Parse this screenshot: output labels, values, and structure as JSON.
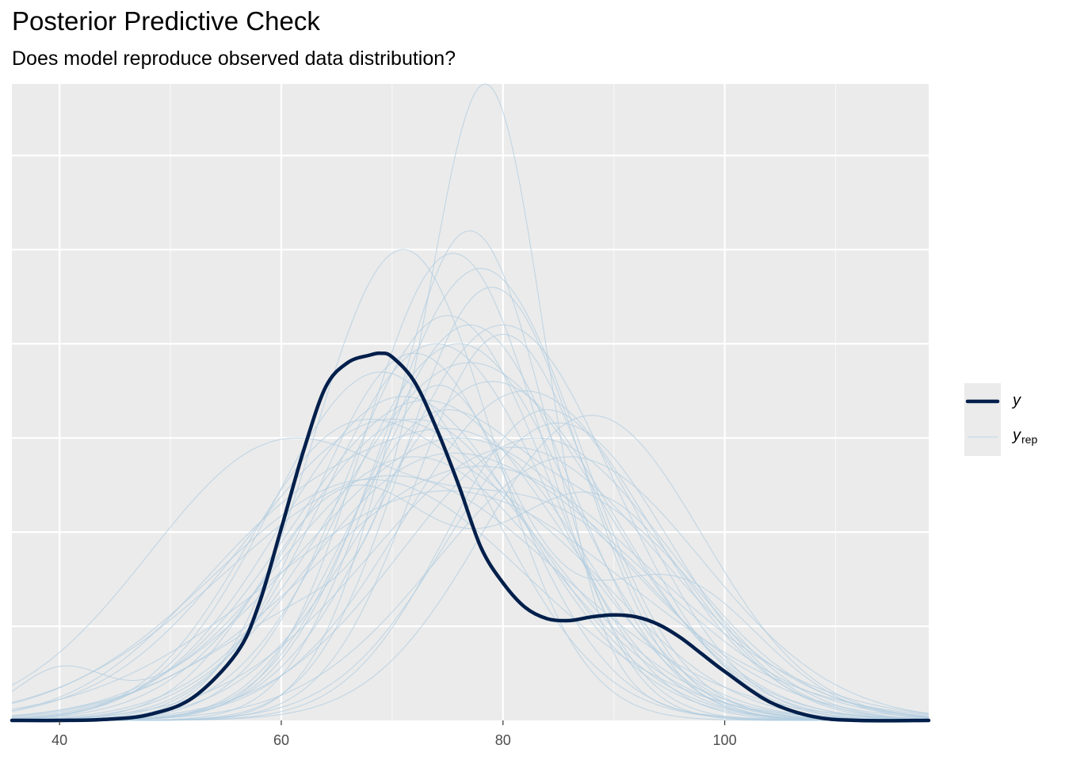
{
  "chart_data": {
    "type": "line",
    "title": "Posterior Predictive Check",
    "subtitle": "Does model reproduce observed data distribution?",
    "xlabel": "",
    "ylabel": "",
    "xlim": [
      35.7,
      118.4
    ],
    "ylim": [
      0,
      0.0338
    ],
    "x_ticks": [
      40,
      60,
      80,
      100
    ],
    "x_tick_labels": [
      "40",
      "60",
      "80",
      "100"
    ],
    "y_gridlines": [
      0.005,
      0.01,
      0.015,
      0.02,
      0.025,
      0.03
    ],
    "y_tick_labels_shown": false,
    "grid": true,
    "legend": {
      "position": "right",
      "entries": [
        {
          "label": "y",
          "subscript": "",
          "color": "#011f4b"
        },
        {
          "label": "y",
          "subscript": "rep",
          "color": "#b3cde0"
        }
      ]
    },
    "series_observed": {
      "name": "y",
      "color": "#011f4b",
      "x": [
        35.7,
        40,
        44,
        48,
        52,
        56,
        58,
        60,
        62,
        64,
        66,
        68,
        69,
        70,
        72,
        74,
        76,
        78,
        80,
        82,
        84,
        86,
        88,
        90,
        92,
        94,
        96,
        98,
        100,
        104,
        108,
        112,
        118.4
      ],
      "y": [
        0.0,
        0.0,
        5e-05,
        0.0003,
        0.0012,
        0.0036,
        0.0062,
        0.0102,
        0.0143,
        0.0177,
        0.019,
        0.0194,
        0.0195,
        0.0193,
        0.018,
        0.0155,
        0.0125,
        0.0092,
        0.0073,
        0.006,
        0.0054,
        0.0053,
        0.0055,
        0.0056,
        0.0055,
        0.0051,
        0.0044,
        0.0035,
        0.0026,
        0.001,
        0.0002,
        0.0,
        0.0
      ]
    },
    "replicates": [
      {
        "c": [
          [
            70,
            10,
            0.5
          ],
          [
            85,
            12,
            0.5
          ]
        ],
        "peak": 0.0142
      },
      {
        "c": [
          [
            72,
            11,
            1
          ]
        ],
        "peak": 0.016
      },
      {
        "c": [
          [
            78.7,
            5,
            0.8
          ],
          [
            68,
            12,
            0.2
          ]
        ],
        "peak": 0.0338
      },
      {
        "c": [
          [
            77,
            7,
            1
          ]
        ],
        "peak": 0.026
      },
      {
        "c": [
          [
            75.5,
            8,
            1
          ]
        ],
        "peak": 0.0248
      },
      {
        "c": [
          [
            71,
            8,
            1
          ]
        ],
        "peak": 0.025
      },
      {
        "c": [
          [
            78,
            9,
            1
          ]
        ],
        "peak": 0.024
      },
      {
        "c": [
          [
            80,
            10,
            1
          ]
        ],
        "peak": 0.021
      },
      {
        "c": [
          [
            74,
            10,
            1
          ]
        ],
        "peak": 0.02
      },
      {
        "c": [
          [
            65,
            9,
            0.6
          ],
          [
            82,
            10,
            0.4
          ]
        ],
        "peak": 0.016
      },
      {
        "c": [
          [
            88,
            10,
            1
          ]
        ],
        "peak": 0.0162
      },
      {
        "c": [
          [
            60,
            12,
            0.6
          ],
          [
            85,
            10,
            0.4
          ]
        ],
        "peak": 0.015
      },
      {
        "c": [
          [
            76,
            14,
            1
          ]
        ],
        "peak": 0.015
      },
      {
        "c": [
          [
            73,
            12,
            1
          ]
        ],
        "peak": 0.017
      },
      {
        "c": [
          [
            82,
            11,
            1
          ]
        ],
        "peak": 0.0175
      },
      {
        "c": [
          [
            40,
            4,
            0.15
          ],
          [
            72,
            12,
            0.85
          ]
        ],
        "peak": 0.014
      },
      {
        "c": [
          [
            79,
            8,
            1
          ]
        ],
        "peak": 0.023
      },
      {
        "c": [
          [
            69,
            10,
            1
          ]
        ],
        "peak": 0.0185
      },
      {
        "c": [
          [
            84,
            9,
            1
          ]
        ],
        "peak": 0.0165
      },
      {
        "c": [
          [
            70,
            15,
            1
          ]
        ],
        "peak": 0.013
      },
      {
        "c": [
          [
            77,
            12,
            1
          ]
        ],
        "peak": 0.019
      },
      {
        "c": [
          [
            66,
            8,
            0.5
          ],
          [
            88,
            9,
            0.5
          ]
        ],
        "peak": 0.0125
      },
      {
        "c": [
          [
            75,
            9,
            1
          ]
        ],
        "peak": 0.0215
      },
      {
        "c": [
          [
            81,
            13,
            1
          ]
        ],
        "peak": 0.0145
      },
      {
        "c": [
          [
            72,
            9,
            1
          ]
        ],
        "peak": 0.0195
      },
      {
        "c": [
          [
            86,
            12,
            1
          ]
        ],
        "peak": 0.014
      },
      {
        "c": [
          [
            63,
            11,
            0.5
          ],
          [
            80,
            9,
            0.5
          ]
        ],
        "peak": 0.0155
      },
      {
        "c": [
          [
            78,
            15,
            1
          ]
        ],
        "peak": 0.0135
      },
      {
        "c": [
          [
            74,
            7,
            0.7
          ],
          [
            95,
            8,
            0.3
          ]
        ],
        "peak": 0.0178
      },
      {
        "c": [
          [
            80,
            8,
            1
          ]
        ],
        "peak": 0.0205
      },
      {
        "c": [
          [
            70,
            13,
            1
          ]
        ],
        "peak": 0.016
      },
      {
        "c": [
          [
            76,
            10,
            1
          ]
        ],
        "peak": 0.02
      },
      {
        "c": [
          [
            83,
            12,
            1
          ]
        ],
        "peak": 0.015
      },
      {
        "c": [
          [
            68,
            14,
            1
          ]
        ],
        "peak": 0.0128
      },
      {
        "c": [
          [
            75,
            16,
            1
          ]
        ],
        "peak": 0.0122
      },
      {
        "c": [
          [
            79,
            11,
            1
          ]
        ],
        "peak": 0.018
      },
      {
        "c": [
          [
            73,
            8,
            0.6
          ],
          [
            90,
            9,
            0.4
          ]
        ],
        "peak": 0.0165
      },
      {
        "c": [
          [
            77,
            9,
            1
          ]
        ],
        "peak": 0.021
      },
      {
        "c": [
          [
            71,
            11,
            1
          ]
        ],
        "peak": 0.0172
      },
      {
        "c": [
          [
            85,
            10,
            1
          ]
        ],
        "peak": 0.0158
      }
    ]
  }
}
